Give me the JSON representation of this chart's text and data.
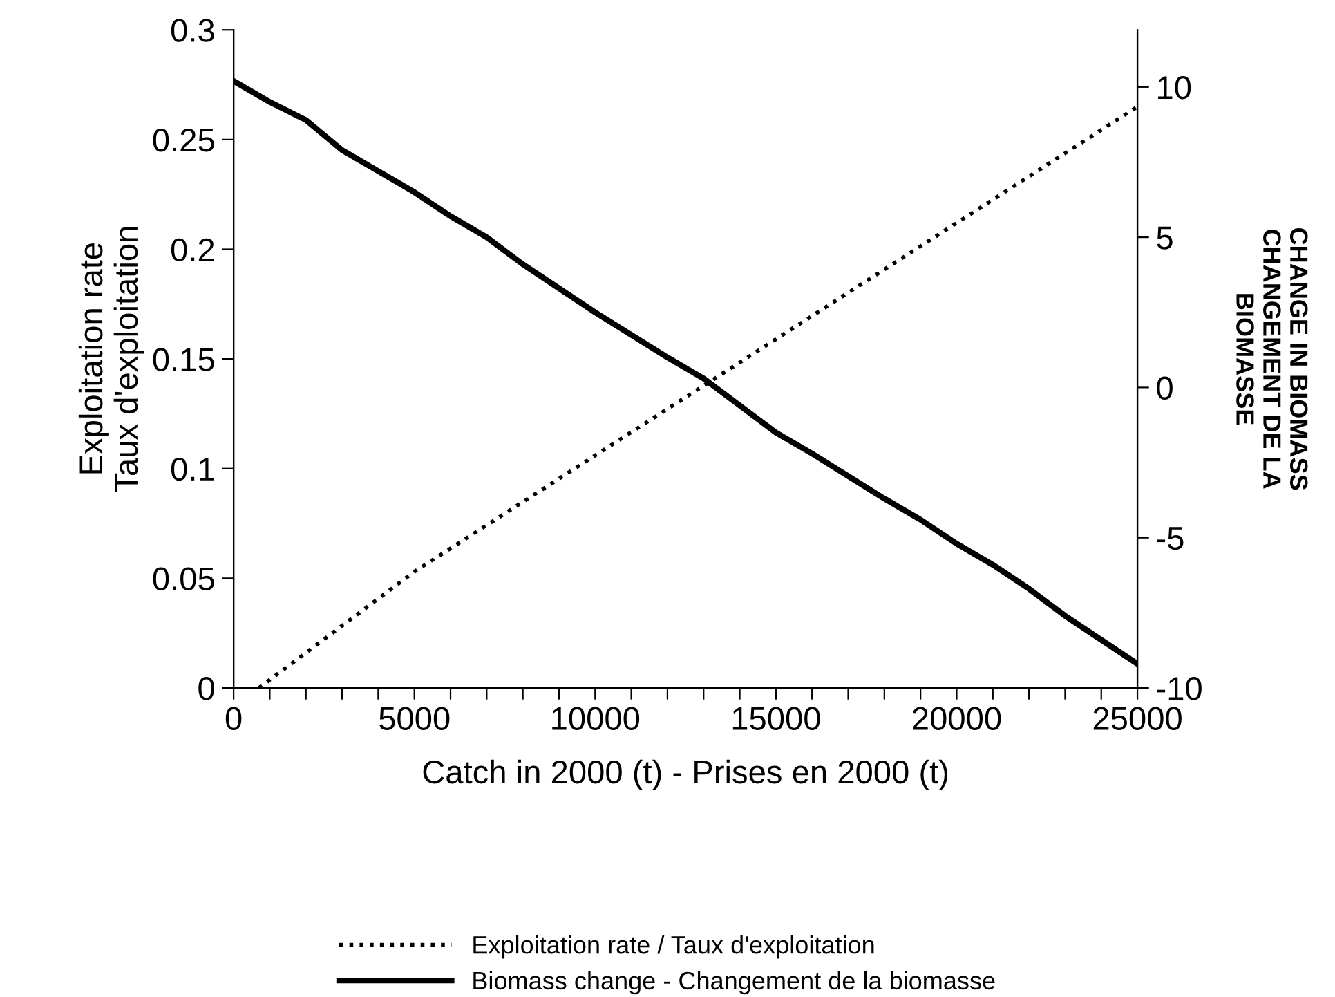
{
  "chart_data": {
    "type": "line",
    "xlabel": "Catch in 2000 (t) - Prises en 2000 (t)",
    "ylabel": "Exploitation rate\nTaux d'exploitation",
    "y2label": "CHANGE IN BIOMASS\nCHANGEMENT DE LA\nBIOMASSE",
    "xlim": [
      0,
      25000
    ],
    "xticks": [
      0,
      {
        "value": 1000,
        "label": null
      },
      {
        "value": 2000,
        "label": null
      },
      {
        "value": 3000,
        "label": null
      },
      {
        "value": 4000,
        "label": null
      },
      5000,
      {
        "value": 6000,
        "label": null
      },
      {
        "value": 7000,
        "label": null
      },
      {
        "value": 8000,
        "label": null
      },
      {
        "value": 9000,
        "label": null
      },
      10000,
      {
        "value": 11000,
        "label": null
      },
      {
        "value": 12000,
        "label": null
      },
      {
        "value": 13000,
        "label": null
      },
      {
        "value": 14000,
        "label": null
      },
      15000,
      {
        "value": 16000,
        "label": null
      },
      {
        "value": 17000,
        "label": null
      },
      {
        "value": 18000,
        "label": null
      },
      {
        "value": 19000,
        "label": null
      },
      20000,
      {
        "value": 21000,
        "label": null
      },
      {
        "value": 22000,
        "label": null
      },
      {
        "value": 23000,
        "label": null
      },
      {
        "value": 24000,
        "label": null
      },
      25000
    ],
    "ylim": [
      0,
      0.3
    ],
    "yticks": [
      0,
      0.05,
      0.1,
      0.15,
      0.2,
      0.25,
      0.3
    ],
    "y2lim": [
      -10,
      11.9
    ],
    "y2ticks": [
      -10,
      -5,
      0,
      5,
      10
    ],
    "legend": "bottom",
    "grid": false,
    "marker": "none",
    "series": [
      {
        "name": "Exploitation rate / Taux d'exploitation",
        "color": "#000000",
        "line_style": "dotted",
        "x": [
          700,
          5000,
          10000,
          15000,
          20000,
          25000
        ],
        "values": [
          0.0,
          0.053,
          0.106,
          0.159,
          0.212,
          0.265
        ]
      },
      {
        "name": "Biomass change - Changement de la biomasse",
        "color": "#000000",
        "line_style": "solid",
        "axis": "y2",
        "x": [
          0,
          1000,
          2000,
          3000,
          4000,
          5000,
          6000,
          7000,
          8000,
          9000,
          10000,
          12000,
          13000,
          14000,
          15000,
          16000,
          18000,
          19000,
          20000,
          21000,
          22000,
          23000,
          24000,
          25000
        ],
        "values": [
          10.2,
          9.5,
          8.9,
          7.9,
          7.2,
          6.5,
          5.7,
          5.0,
          4.1,
          3.3,
          2.5,
          1.0,
          0.3,
          -0.6,
          -1.5,
          -2.2,
          -3.7,
          -4.4,
          -5.2,
          -5.9,
          -6.7,
          -7.6,
          -8.4,
          -9.2
        ]
      }
    ]
  }
}
